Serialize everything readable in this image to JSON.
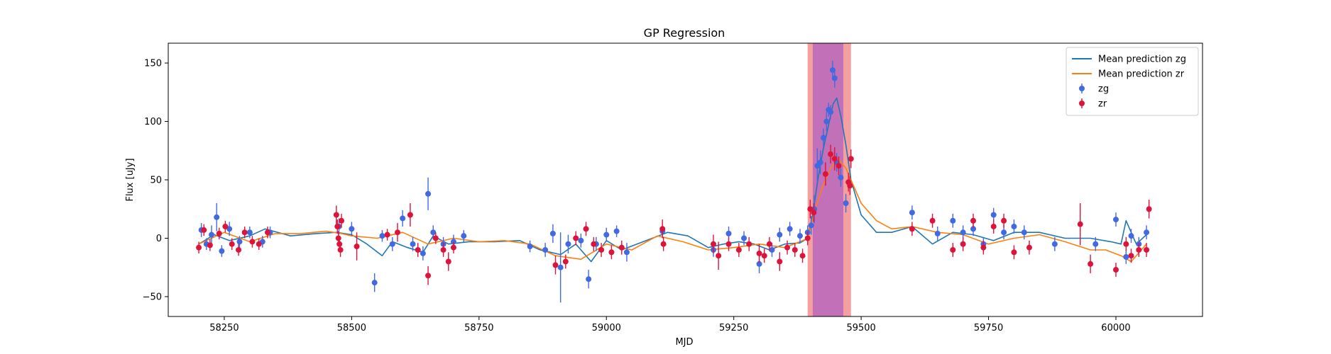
{
  "chart_data": {
    "type": "scatter",
    "title": "GP Regression",
    "xlabel": "MJD",
    "ylabel": "Flux [uJy]",
    "xlim": [
      58140,
      60170
    ],
    "ylim": [
      -67,
      167
    ],
    "x_ticks": [
      58250,
      58500,
      58750,
      59000,
      59250,
      59500,
      59750,
      60000
    ],
    "y_ticks": [
      -50,
      0,
      50,
      100,
      150
    ],
    "x_tick_labels": [
      "58250",
      "58500",
      "58750",
      "59000",
      "59250",
      "59500",
      "59750",
      "60000"
    ],
    "y_tick_labels": [
      "−50",
      "0",
      "50",
      "100",
      "150"
    ],
    "grid": false,
    "legend_position": "upper-right",
    "legend": [
      {
        "label": "Mean prediction zg",
        "kind": "line",
        "color": "#1f77b4"
      },
      {
        "label": "Mean prediction zr",
        "kind": "line",
        "color": "#ff7f0e"
      },
      {
        "label": "zg",
        "kind": "errorbar",
        "color": "#4169e1"
      },
      {
        "label": "zr",
        "kind": "errorbar",
        "color": "#dc143c"
      }
    ],
    "highlight_regions": [
      {
        "x_range": [
          59395,
          59480
        ],
        "color": "#f08080",
        "alpha": 0.75
      },
      {
        "x_range": [
          59405,
          59465
        ],
        "color": "#a050c8",
        "alpha": 0.6
      }
    ],
    "series": [
      {
        "name": "Mean prediction zg",
        "kind": "line",
        "color": "#1f77b4",
        "x": [
          58200,
          58230,
          58260,
          58300,
          58330,
          58380,
          58430,
          58470,
          58500,
          58530,
          58560,
          58580,
          58610,
          58640,
          58660,
          58690,
          58730,
          58780,
          58830,
          58870,
          58890,
          58910,
          58940,
          58970,
          59000,
          59030,
          59060,
          59090,
          59120,
          59160,
          59200,
          59230,
          59260,
          59290,
          59320,
          59350,
          59380,
          59395,
          59405,
          59415,
          59425,
          59435,
          59445,
          59452,
          59460,
          59470,
          59480,
          59500,
          59530,
          59560,
          59600,
          59640,
          59680,
          59720,
          59760,
          59800,
          59850,
          59900,
          59950,
          59990,
          60010,
          60020,
          60040,
          60060
        ],
        "y": [
          -5,
          3,
          -2,
          2,
          8,
          2,
          4,
          5,
          3,
          -5,
          -15,
          -3,
          -8,
          -12,
          2,
          -5,
          -3,
          -3,
          -2,
          -10,
          -12,
          -14,
          -5,
          -20,
          -2,
          -10,
          -5,
          0,
          5,
          2,
          -8,
          -5,
          -3,
          -5,
          -10,
          -5,
          -4,
          0,
          20,
          50,
          75,
          95,
          115,
          120,
          105,
          80,
          50,
          20,
          5,
          5,
          10,
          -5,
          5,
          3,
          -2,
          5,
          5,
          0,
          0,
          -3,
          -5,
          15,
          -5,
          3
        ]
      },
      {
        "name": "Mean prediction zr",
        "kind": "line",
        "color": "#ff7f0e",
        "x": [
          58200,
          58250,
          58300,
          58350,
          58400,
          58450,
          58480,
          58500,
          58550,
          58600,
          58650,
          58700,
          58750,
          58800,
          58850,
          58900,
          58950,
          59000,
          59050,
          59100,
          59150,
          59200,
          59250,
          59300,
          59350,
          59380,
          59395,
          59410,
          59425,
          59440,
          59455,
          59470,
          59480,
          59500,
          59530,
          59560,
          59600,
          59650,
          59700,
          59750,
          59800,
          59850,
          59900,
          59950,
          59980,
          60010,
          60030,
          60050,
          60060
        ],
        "y": [
          -5,
          5,
          -3,
          4,
          4,
          6,
          4,
          2,
          0,
          5,
          -5,
          0,
          -3,
          -2,
          -5,
          -15,
          -18,
          -5,
          -10,
          2,
          -3,
          -10,
          -8,
          -5,
          -8,
          -3,
          0,
          25,
          45,
          60,
          68,
          60,
          50,
          30,
          15,
          8,
          10,
          5,
          3,
          -5,
          0,
          3,
          -3,
          -10,
          -10,
          -15,
          -20,
          -10,
          -5
        ]
      },
      {
        "name": "zg",
        "kind": "errorbar",
        "color": "#4169e1",
        "x": [
          58205,
          58215,
          58225,
          58235,
          58245,
          58260,
          58280,
          58300,
          58325,
          58340,
          58475,
          58500,
          58545,
          58560,
          58580,
          58600,
          58620,
          58640,
          58650,
          58660,
          58680,
          58700,
          58720,
          58850,
          58880,
          58895,
          58910,
          58925,
          58950,
          58965,
          58980,
          59000,
          59020,
          59040,
          59110,
          59210,
          59240,
          59270,
          59300,
          59325,
          59340,
          59360,
          59380,
          59395,
          59402,
          59408,
          59414,
          59420,
          59426,
          59432,
          59436,
          59440,
          59444,
          59448,
          59452,
          59460,
          59470,
          59600,
          59650,
          59680,
          59700,
          59720,
          59740,
          59760,
          59780,
          59800,
          59820,
          59880,
          59960,
          60000,
          60020,
          60030,
          60045,
          60060
        ],
        "y": [
          7,
          -5,
          3,
          18,
          -11,
          8,
          -3,
          5,
          -3,
          5,
          10,
          8,
          -38,
          2,
          -5,
          17,
          -5,
          -13,
          38,
          5,
          -5,
          -3,
          2,
          -7,
          -10,
          4,
          -25,
          -5,
          -2,
          -35,
          -5,
          3,
          6,
          -12,
          6,
          -10,
          4,
          0,
          -22,
          -10,
          3,
          8,
          2,
          5,
          11,
          25,
          62,
          65,
          86,
          100,
          110,
          108,
          144,
          137,
          65,
          52,
          30,
          22,
          4,
          15,
          5,
          8,
          -5,
          20,
          5,
          10,
          5,
          -5,
          -5,
          16,
          -16,
          2,
          -5,
          5
        ],
        "err": [
          6,
          5,
          8,
          12,
          5,
          6,
          5,
          5,
          5,
          5,
          7,
          6,
          8,
          5,
          6,
          7,
          6,
          6,
          14,
          6,
          6,
          6,
          5,
          5,
          6,
          8,
          30,
          8,
          6,
          8,
          6,
          6,
          5,
          8,
          6,
          6,
          6,
          6,
          8,
          6,
          6,
          6,
          6,
          6,
          8,
          12,
          15,
          10,
          8,
          8,
          6,
          6,
          8,
          8,
          8,
          8,
          8,
          6,
          6,
          6,
          6,
          6,
          6,
          6,
          6,
          6,
          6,
          6,
          6,
          6,
          6,
          6,
          6,
          6
        ]
      },
      {
        "name": "zr",
        "kind": "errorbar",
        "color": "#dc143c",
        "x": [
          58200,
          58210,
          58222,
          58240,
          58252,
          58265,
          58278,
          58290,
          58305,
          58318,
          58335,
          58470,
          58472,
          58474,
          58476,
          58478,
          58480,
          58510,
          58570,
          58590,
          58615,
          58630,
          58650,
          58665,
          58680,
          58690,
          58700,
          58900,
          58920,
          58940,
          58960,
          58975,
          58990,
          59010,
          59030,
          59110,
          59112,
          59210,
          59220,
          59240,
          59260,
          59280,
          59300,
          59310,
          59320,
          59340,
          59355,
          59370,
          59385,
          59395,
          59400,
          59407,
          59430,
          59440,
          59448,
          59456,
          59475,
          59478,
          59480,
          59600,
          59640,
          59680,
          59700,
          59720,
          59740,
          59760,
          59780,
          59800,
          59830,
          59930,
          59950,
          60000,
          60020,
          60030,
          60045,
          60060,
          60065
        ],
        "y": [
          -8,
          7,
          -6,
          4,
          10,
          -5,
          -10,
          5,
          -3,
          -5,
          5,
          20,
          10,
          0,
          -5,
          -10,
          15,
          -7,
          3,
          5,
          20,
          -10,
          -32,
          0,
          -10,
          -20,
          -8,
          -23,
          -20,
          0,
          8,
          -5,
          -10,
          -12,
          -8,
          8,
          -5,
          -5,
          -15,
          -5,
          -10,
          -5,
          -13,
          -15,
          -5,
          -20,
          -8,
          -10,
          -15,
          0,
          25,
          22,
          55,
          72,
          68,
          62,
          48,
          45,
          68,
          8,
          15,
          -10,
          -5,
          15,
          -8,
          10,
          15,
          -12,
          -8,
          12,
          -22,
          -27,
          -5,
          -15,
          -10,
          -10,
          25
        ],
        "err": [
          5,
          5,
          5,
          5,
          5,
          5,
          5,
          5,
          5,
          5,
          5,
          8,
          6,
          6,
          6,
          6,
          6,
          12,
          5,
          8,
          10,
          6,
          8,
          5,
          6,
          8,
          5,
          8,
          6,
          6,
          6,
          6,
          6,
          6,
          6,
          8,
          6,
          8,
          12,
          6,
          6,
          6,
          8,
          6,
          6,
          8,
          6,
          6,
          6,
          6,
          8,
          8,
          10,
          8,
          10,
          8,
          8,
          8,
          8,
          6,
          6,
          6,
          6,
          6,
          6,
          6,
          6,
          6,
          6,
          18,
          8,
          6,
          6,
          6,
          6,
          6,
          8
        ]
      }
    ]
  }
}
